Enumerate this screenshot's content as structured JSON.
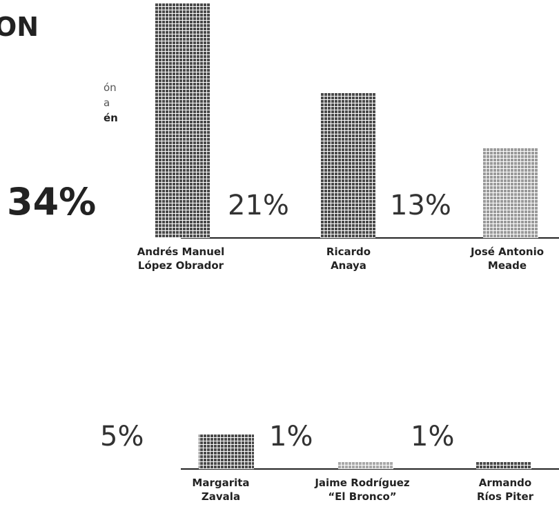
{
  "chart_data": {
    "type": "bar",
    "title": "ON",
    "subtitle_fragments": [
      "ón",
      "a",
      "én"
    ],
    "categories": [
      "Andrés Manuel\nLópez Obrador",
      "Ricardo\nAnaya",
      "José Antonio\nMeade",
      "Margarita\nZavala",
      "Jaime Rodríguez\n“El Bronco”",
      "Armando\nRíos Piter"
    ],
    "values": [
      34,
      21,
      13,
      5,
      1,
      1
    ],
    "value_labels": [
      "34%",
      "21%",
      "13%",
      "5%",
      "1%",
      "1%"
    ],
    "colors": [
      "#4a4a4a",
      "#4a4a4a",
      "#9a9a9a",
      "#4a4a4a",
      "#a8a8a8",
      "#4a4a4a"
    ]
  }
}
